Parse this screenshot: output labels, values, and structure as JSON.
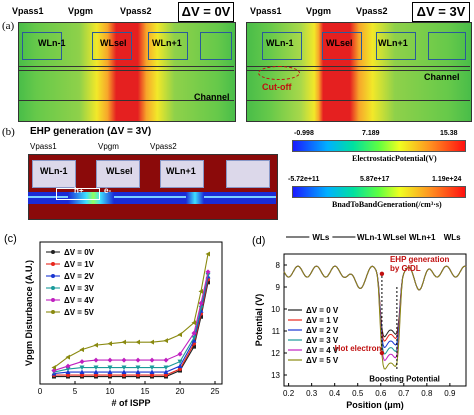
{
  "panel_a": {
    "letter": "(a)",
    "left": {
      "vpass1": "Vpass1",
      "vpgm": "Vpgm",
      "vpass2": "Vpass2",
      "dv": "ΔV = 0V",
      "wl_prev": "WLn-1",
      "wl_sel": "WLsel",
      "wl_next": "WLn+1",
      "channel": "Channel"
    },
    "right": {
      "vpass1": "Vpass1",
      "vpgm": "Vpgm",
      "vpass2": "Vpass2",
      "dv": "ΔV = 3V",
      "wl_prev": "WLn-1",
      "wl_sel": "WLsel",
      "wl_next": "WLn+1",
      "channel": "Channel",
      "cutoff": "Cut-off"
    }
  },
  "panel_b": {
    "letter": "(b)",
    "title": "EHP generation (ΔV = 3V)",
    "vpass1": "Vpass1",
    "vpgm": "Vpgm",
    "vpass2": "Vpass2",
    "wl_prev": "WLn-1",
    "wl_sel": "WLsel",
    "wl_next": "WLn+1",
    "hplus": "h+",
    "eminus": "e-"
  },
  "colorbar1": {
    "ticks": [
      "-0.998",
      "7.189",
      "15.38"
    ],
    "title": "ElectrostaticPotential(V)"
  },
  "colorbar2": {
    "ticks": [
      "-5.72e+11",
      "5.87e+17",
      "1.19e+24"
    ],
    "title": "BnadToBandGeneration(/cm³·s)"
  },
  "colors": {
    "tcad_green": "#4fc24f",
    "tcad_red": "#e52020",
    "tcad_yellow": "#f2e829",
    "gate_blue": "#9bb7e6",
    "dark_red": "#8b0a0a",
    "series": [
      "#222222",
      "#e8261c",
      "#1a36d1",
      "#1a9a9a",
      "#c020c0",
      "#8a8a10"
    ]
  },
  "chart_c": {
    "letter": "(c)",
    "chart_data": {
      "type": "line",
      "xlabel": "# of ISPP",
      "ylabel": "Vpgm Disturbance (A.U.)",
      "xlim": [
        0,
        26
      ],
      "xticks": [
        "0",
        "5",
        "10",
        "15",
        "20",
        "25"
      ],
      "series": [
        {
          "name": "ΔV = 0V",
          "x": [
            2,
            4,
            6,
            8,
            10,
            12,
            14,
            16,
            18,
            20,
            22,
            23,
            24
          ],
          "y": [
            1.0,
            1.0,
            1.0,
            1.0,
            1.0,
            1.0,
            1.0,
            1.0,
            1.0,
            1.4,
            3.0,
            5.0,
            7.3
          ]
        },
        {
          "name": "ΔV = 1V",
          "x": [
            2,
            4,
            6,
            8,
            10,
            12,
            14,
            16,
            18,
            20,
            22,
            23,
            24
          ],
          "y": [
            1.1,
            1.1,
            1.1,
            1.1,
            1.1,
            1.1,
            1.1,
            1.1,
            1.1,
            1.5,
            3.2,
            5.2,
            7.5
          ]
        },
        {
          "name": "ΔV = 2V",
          "x": [
            2,
            4,
            6,
            8,
            10,
            12,
            14,
            16,
            18,
            20,
            22,
            23,
            24
          ],
          "y": [
            1.2,
            1.3,
            1.3,
            1.3,
            1.3,
            1.3,
            1.3,
            1.3,
            1.3,
            1.7,
            3.4,
            5.4,
            7.7
          ]
        },
        {
          "name": "ΔV = 3V",
          "x": [
            2,
            4,
            6,
            8,
            10,
            12,
            14,
            16,
            18,
            20,
            22,
            23,
            24
          ],
          "y": [
            1.3,
            1.5,
            1.6,
            1.6,
            1.6,
            1.6,
            1.6,
            1.6,
            1.6,
            2.0,
            3.6,
            5.6,
            7.8
          ]
        },
        {
          "name": "ΔV = 4V",
          "x": [
            2,
            4,
            6,
            8,
            10,
            12,
            14,
            16,
            18,
            20,
            22,
            23,
            24
          ],
          "y": [
            1.4,
            1.7,
            2.0,
            2.1,
            2.1,
            2.1,
            2.1,
            2.1,
            2.1,
            2.5,
            3.9,
            5.9,
            8.0
          ]
        },
        {
          "name": "ΔV = 5V",
          "x": [
            2,
            4,
            6,
            8,
            10,
            12,
            14,
            16,
            18,
            20,
            22,
            23,
            24
          ],
          "y": [
            1.6,
            2.3,
            2.8,
            3.1,
            3.2,
            3.3,
            3.3,
            3.3,
            3.4,
            3.8,
            4.6,
            6.7,
            9.2
          ]
        }
      ]
    }
  },
  "chart_d": {
    "letter": "(d)",
    "top_labels": {
      "wls_left": "WLs",
      "wln1": "WLn-1",
      "wlsel": "WLsel",
      "wlnp1": "WLn+1",
      "wls_right": "WLs"
    },
    "annotations": {
      "ehp": "EHP generation\nby GIDL",
      "hot_electron": "Hot electron",
      "boosting": "Boosting Potential"
    },
    "chart_data": {
      "type": "line",
      "xlabel": "Position (μm)",
      "ylabel": "Potential (V)",
      "xlim": [
        0.18,
        0.97
      ],
      "ylim": [
        7.5,
        13.5
      ],
      "y_inverted": true,
      "xticks": [
        "0.2",
        "0.3",
        "0.4",
        "0.5",
        "0.6",
        "0.7",
        "0.8",
        "0.9"
      ],
      "yticks": [
        "8",
        "9",
        "10",
        "11",
        "12",
        "13"
      ],
      "series": [
        {
          "name": "ΔV = 0 V",
          "min": 11.2
        },
        {
          "name": "ΔV = 1 V",
          "min": 11.4
        },
        {
          "name": "ΔV = 2 V",
          "min": 11.7
        },
        {
          "name": "ΔV = 3 V",
          "min": 12.0
        },
        {
          "name": "ΔV = 4 V",
          "min": 12.3
        },
        {
          "name": "ΔV = 5 V",
          "min": 12.7
        }
      ]
    }
  }
}
